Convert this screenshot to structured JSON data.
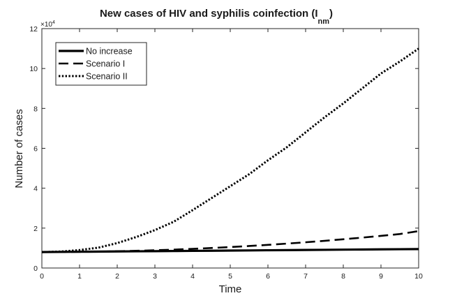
{
  "chart_data": {
    "type": "line",
    "title": "New cases of HIV and syphilis coinfection (I",
    "title_subscript": "nm",
    "title_close": ")",
    "xlabel": "Time",
    "ylabel": "Number of cases",
    "y_multiplier_base": "×10",
    "y_multiplier_exponent": "4",
    "xlim": [
      0,
      10
    ],
    "ylim": [
      0,
      12
    ],
    "x_ticks": [
      0,
      1,
      2,
      3,
      4,
      5,
      6,
      7,
      8,
      9,
      10
    ],
    "y_ticks": [
      0,
      2,
      4,
      6,
      8,
      10,
      12
    ],
    "grid": false,
    "legend_position": "top-left",
    "x": [
      0,
      0.5,
      1,
      1.5,
      2,
      2.5,
      3,
      3.5,
      4,
      4.5,
      5,
      5.5,
      6,
      6.5,
      7,
      7.5,
      8,
      8.5,
      9,
      9.5,
      10
    ],
    "series": [
      {
        "name": "No increase",
        "style": "solid",
        "values": [
          0.8,
          0.807,
          0.815,
          0.822,
          0.83,
          0.837,
          0.845,
          0.852,
          0.86,
          0.867,
          0.875,
          0.882,
          0.89,
          0.897,
          0.905,
          0.912,
          0.92,
          0.927,
          0.935,
          0.942,
          0.95
        ]
      },
      {
        "name": "Scenario I",
        "style": "dashed",
        "values": [
          0.8,
          0.803,
          0.81,
          0.823,
          0.84,
          0.863,
          0.89,
          0.923,
          0.96,
          1.003,
          1.05,
          1.103,
          1.16,
          1.223,
          1.29,
          1.363,
          1.44,
          1.523,
          1.61,
          1.703,
          1.85
        ]
      },
      {
        "name": "Scenario II",
        "style": "dotted",
        "values": [
          0.8,
          0.825,
          0.9,
          1.02,
          1.25,
          1.55,
          1.9,
          2.32,
          2.9,
          3.5,
          4.1,
          4.7,
          5.4,
          6.05,
          6.8,
          7.55,
          8.25,
          9.0,
          9.75,
          10.35,
          11.0
        ]
      }
    ]
  }
}
